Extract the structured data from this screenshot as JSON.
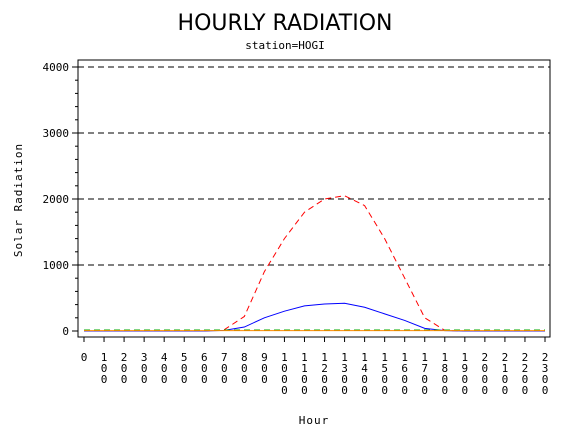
{
  "chart_data": {
    "type": "line",
    "title": "HOURLY RADIATION",
    "subtitle": "station=HOGI",
    "xlabel": "Hour",
    "ylabel": "Solar Radiation",
    "x": [
      0,
      100,
      200,
      300,
      400,
      500,
      600,
      700,
      800,
      900,
      1000,
      1100,
      1200,
      1300,
      1400,
      1500,
      1600,
      1700,
      1800,
      1900,
      2000,
      2100,
      2200,
      2300
    ],
    "xlim": [
      0,
      2300
    ],
    "ylim": [
      0,
      4000
    ],
    "yticks": [
      0,
      1000,
      2000,
      3000,
      4000
    ],
    "grid": "horizontal-dashed",
    "series": [
      {
        "color": "#ff0000",
        "style": "dashed",
        "values": [
          0,
          0,
          0,
          0,
          0,
          0,
          0,
          20,
          220,
          900,
          1400,
          1800,
          2000,
          2050,
          1900,
          1400,
          800,
          200,
          10,
          0,
          0,
          0,
          0,
          0
        ]
      },
      {
        "color": "#0000ff",
        "style": "solid",
        "values": [
          0,
          0,
          0,
          0,
          0,
          0,
          0,
          10,
          60,
          200,
          300,
          380,
          410,
          420,
          360,
          260,
          160,
          40,
          5,
          0,
          0,
          0,
          0,
          0
        ]
      },
      {
        "color": "#00aa00",
        "style": "dashed",
        "values": [
          15,
          15,
          15,
          15,
          15,
          15,
          15,
          15,
          15,
          15,
          15,
          15,
          15,
          15,
          15,
          15,
          15,
          15,
          15,
          15,
          15,
          15,
          15,
          15
        ]
      },
      {
        "color": "#ff8800",
        "style": "solid",
        "values": [
          5,
          5,
          5,
          5,
          5,
          5,
          5,
          5,
          5,
          5,
          5,
          5,
          5,
          5,
          5,
          5,
          5,
          5,
          5,
          5,
          5,
          5,
          5,
          5
        ]
      }
    ]
  }
}
